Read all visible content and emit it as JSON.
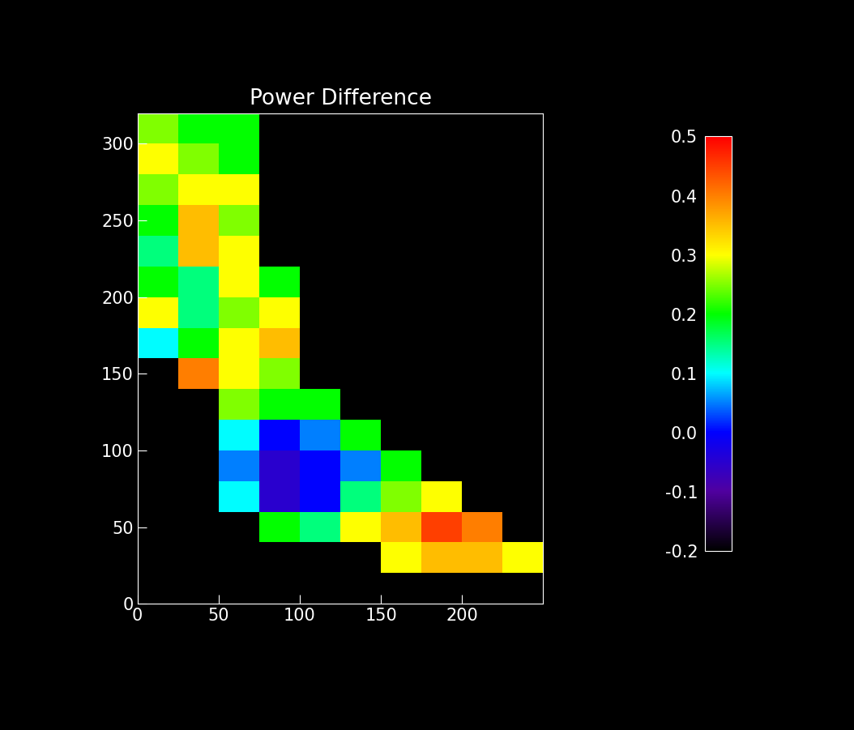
{
  "chart_data": {
    "type": "heatmap",
    "title": "Power Difference",
    "xlim": [
      0,
      250
    ],
    "ylim": [
      0,
      320
    ],
    "xticks": [
      0,
      50,
      100,
      150,
      200
    ],
    "yticks": [
      0,
      50,
      100,
      150,
      200,
      250,
      300
    ],
    "x_edges": [
      0,
      25,
      50,
      75,
      100,
      125,
      150,
      175,
      200,
      225,
      250
    ],
    "y_edges": [
      0,
      20,
      40,
      60,
      80,
      100,
      120,
      140,
      160,
      180,
      200,
      220,
      240,
      260,
      280,
      300,
      320
    ],
    "cells": [
      [
        null,
        null,
        null,
        null,
        null,
        null,
        null,
        null,
        null,
        null
      ],
      [
        null,
        null,
        null,
        null,
        null,
        null,
        0.3,
        0.35,
        0.35,
        0.3
      ],
      [
        null,
        null,
        null,
        0.2,
        0.15,
        0.3,
        0.35,
        0.45,
        0.4,
        null
      ],
      [
        null,
        null,
        0.1,
        -0.05,
        0.0,
        0.15,
        0.25,
        0.3,
        null,
        null
      ],
      [
        null,
        null,
        0.05,
        -0.05,
        0.0,
        0.05,
        0.2,
        null,
        null,
        null
      ],
      [
        null,
        null,
        0.1,
        0.0,
        0.05,
        0.2,
        null,
        null,
        null,
        null
      ],
      [
        null,
        null,
        0.25,
        0.2,
        0.2,
        null,
        null,
        null,
        null,
        null
      ],
      [
        null,
        0.4,
        0.3,
        0.25,
        null,
        null,
        null,
        null,
        null,
        null
      ],
      [
        0.1,
        0.2,
        0.3,
        0.35,
        null,
        null,
        null,
        null,
        null,
        null
      ],
      [
        0.3,
        0.15,
        0.25,
        0.3,
        null,
        null,
        null,
        null,
        null,
        null
      ],
      [
        0.2,
        0.15,
        0.3,
        0.2,
        null,
        null,
        null,
        null,
        null,
        null
      ],
      [
        0.15,
        0.35,
        0.3,
        null,
        null,
        null,
        null,
        null,
        null,
        null
      ],
      [
        0.2,
        0.35,
        0.25,
        null,
        null,
        null,
        null,
        null,
        null,
        null
      ],
      [
        0.25,
        0.3,
        0.3,
        null,
        null,
        null,
        null,
        null,
        null,
        null
      ],
      [
        0.3,
        0.25,
        0.2,
        null,
        null,
        null,
        null,
        null,
        null,
        null
      ],
      [
        0.25,
        0.2,
        0.2,
        null,
        null,
        null,
        null,
        null,
        null,
        null
      ]
    ],
    "colorbar": {
      "range": [
        -0.2,
        0.5
      ],
      "ticks": [
        -0.2,
        -0.1,
        {
          "value": 0,
          "label": "0.0"
        },
        0.1,
        0.2,
        0.3,
        0.4,
        0.5
      ]
    }
  }
}
